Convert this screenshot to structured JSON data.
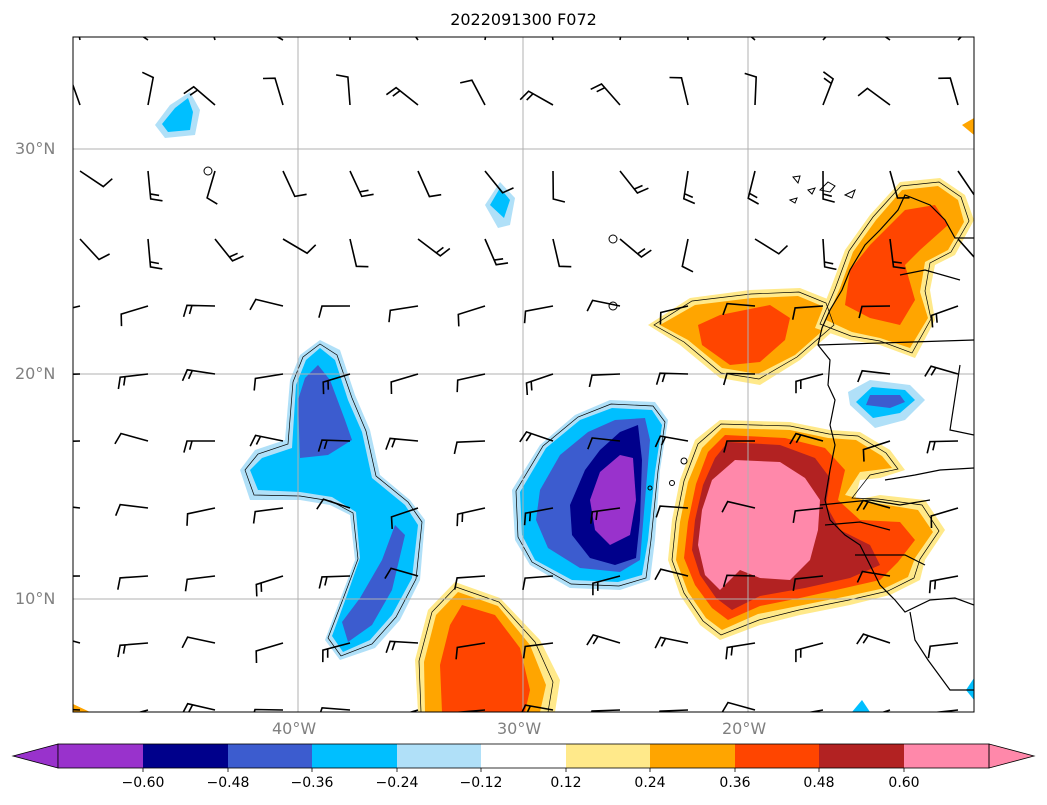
{
  "title": "2022091300 F072",
  "lat_labels": [
    "30°N",
    "20°N",
    "10°N"
  ],
  "lon_labels": [
    "40°W",
    "30°W",
    "20°W"
  ],
  "colorbar": {
    "tick_labels": [
      "−0.60",
      "−0.48",
      "−0.36",
      "−0.24",
      "−0.12",
      "0.12",
      "0.24",
      "0.36",
      "0.48",
      "0.60"
    ],
    "colors": [
      "#9932cc",
      "#00008b",
      "#3c5ccf",
      "#00bfff",
      "#b0e0f8",
      "#ffffff",
      "#ffe98a",
      "#ffa500",
      "#ff4500",
      "#b22222",
      "#ff88aa"
    ]
  },
  "map": {
    "lat_range": [
      5,
      35
    ],
    "lon_range": [
      -50,
      -10
    ],
    "gridlines": true,
    "wind_barbs": true
  }
}
